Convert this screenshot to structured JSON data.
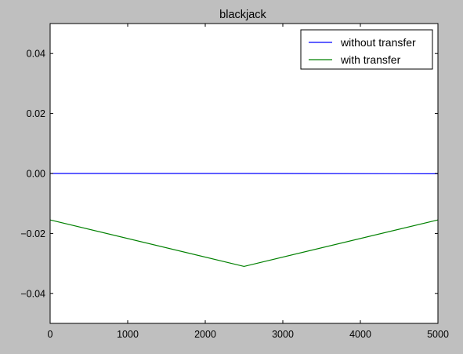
{
  "chart_data": {
    "type": "line",
    "title": "blackjack",
    "xlabel": "",
    "ylabel": "",
    "xlim": [
      0,
      5000
    ],
    "ylim": [
      -0.05,
      0.05
    ],
    "xticks": [
      0,
      1000,
      2000,
      3000,
      4000,
      5000
    ],
    "xtick_labels": [
      "0",
      "1000",
      "2000",
      "3000",
      "4000",
      "5000"
    ],
    "yticks": [
      0.04,
      0.02,
      0.0,
      -0.02,
      -0.04
    ],
    "ytick_labels": [
      "0.04",
      "0.02",
      "0.00",
      "−0.02",
      "−0.04"
    ],
    "grid": false,
    "legend_position": "top-right",
    "series": [
      {
        "name": "without transfer",
        "color": "#0000ff",
        "x": [
          0,
          2500,
          5000
        ],
        "y": [
          0.0,
          0.0,
          -0.0001
        ]
      },
      {
        "name": "with transfer",
        "color": "#008000",
        "x": [
          0,
          2500,
          5000
        ],
        "y": [
          -0.0155,
          -0.031,
          -0.0155
        ]
      }
    ]
  },
  "colors": {
    "figure_background": "#bfbfbf",
    "axes_background": "#ffffff"
  }
}
